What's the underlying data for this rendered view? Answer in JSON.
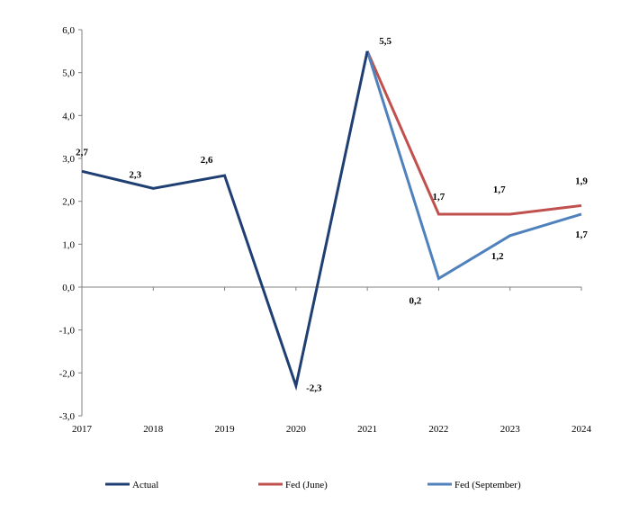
{
  "chart_data": {
    "type": "line",
    "categories": [
      "2017",
      "2018",
      "2019",
      "2020",
      "2021",
      "2022",
      "2023",
      "2024"
    ],
    "ylim": [
      -3.0,
      6.0
    ],
    "ytick_labels": [
      "-3,0",
      "-2,0",
      "-1,0",
      "0,0",
      "1,0",
      "2,0",
      "3,0",
      "4,0",
      "5,0",
      "6,0"
    ],
    "grid": false,
    "legend_position": "bottom",
    "series": [
      {
        "name": "Actual",
        "color": "#1f3f73",
        "values": [
          2.7,
          2.3,
          2.6,
          -2.3,
          5.5,
          null,
          null,
          null
        ],
        "labels": [
          "2,7",
          "2,3",
          "2,6",
          "-2,3",
          "5,5",
          "",
          "",
          ""
        ]
      },
      {
        "name": "Fed (June)",
        "color": "#c0504d",
        "values": [
          null,
          null,
          null,
          null,
          5.5,
          1.7,
          1.7,
          1.9
        ],
        "labels": [
          "",
          "",
          "",
          "",
          "",
          "1,7",
          "1,7",
          "1,9"
        ]
      },
      {
        "name": "Fed (September)",
        "color": "#4f81bd",
        "values": [
          null,
          null,
          null,
          null,
          5.5,
          0.2,
          1.2,
          1.7
        ],
        "labels": [
          "",
          "",
          "",
          "",
          "",
          "0,2",
          "1,2",
          "1,7"
        ]
      }
    ]
  }
}
